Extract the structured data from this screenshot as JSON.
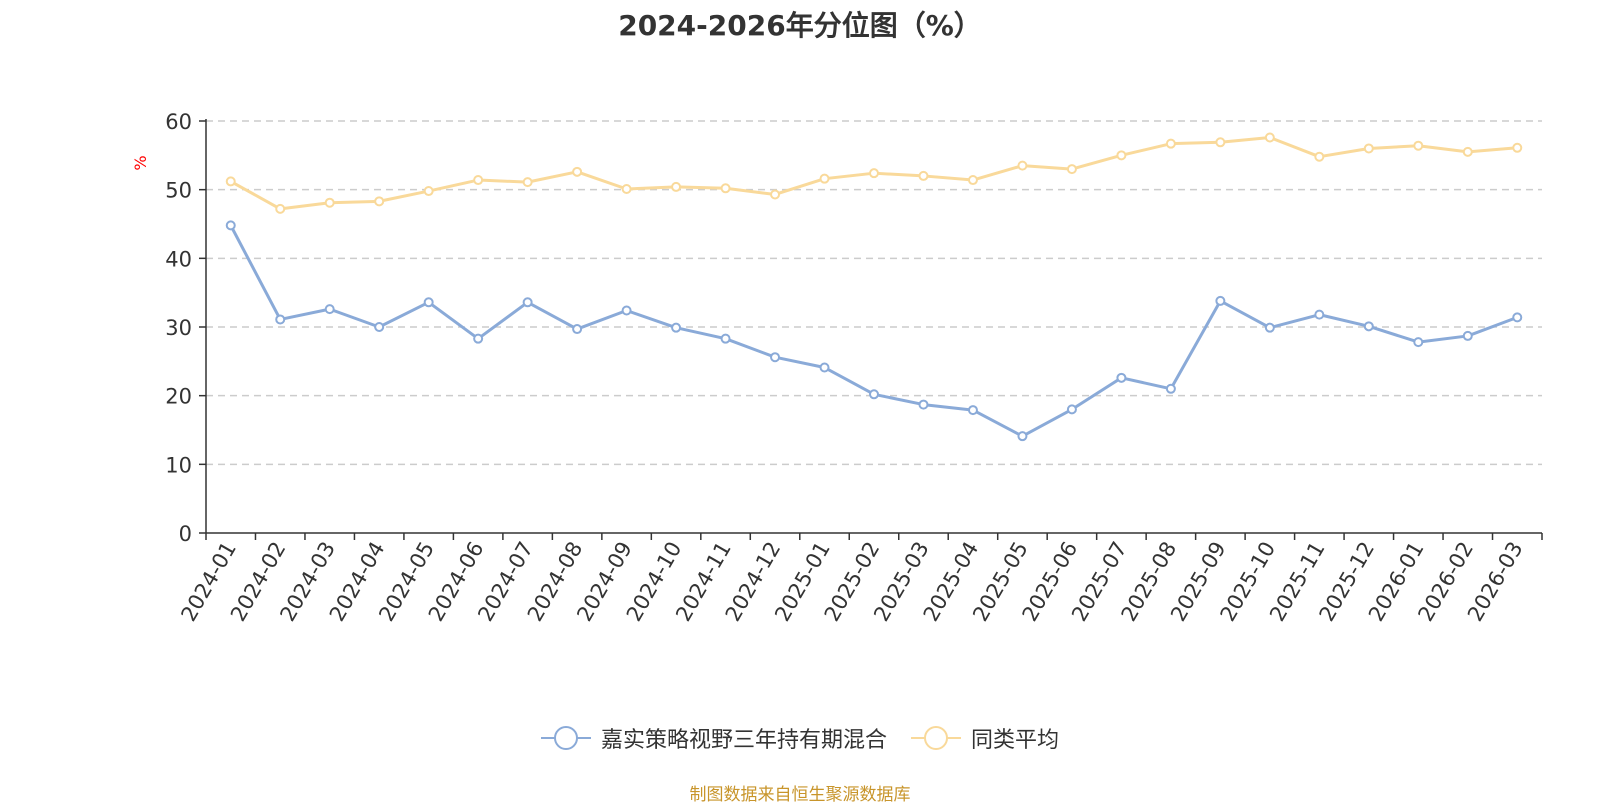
{
  "chart_data": {
    "type": "line",
    "title": "2024-2026年分位图（%）",
    "ylabel": "%",
    "xlabel": "",
    "ylim": [
      0,
      60
    ],
    "yticks": [
      0,
      10,
      20,
      30,
      40,
      50,
      60
    ],
    "grid": true,
    "legend_position": "bottom-center",
    "categories": [
      "2024-01",
      "2024-02",
      "2024-03",
      "2024-04",
      "2024-05",
      "2024-06",
      "2024-07",
      "2024-08",
      "2024-09",
      "2024-10",
      "2024-11",
      "2024-12",
      "2025-01",
      "2025-02",
      "2025-03",
      "2025-04",
      "2025-05",
      "2025-06",
      "2025-07",
      "2025-08",
      "2025-09",
      "2025-10",
      "2025-11",
      "2025-12",
      "2026-01",
      "2026-02",
      "2026-03"
    ],
    "series": [
      {
        "name": "嘉实策略视野三年持有期混合",
        "color": "#8aaad8",
        "values": [
          44.8,
          31.1,
          32.6,
          30.0,
          33.6,
          28.3,
          33.6,
          29.7,
          32.4,
          29.9,
          28.3,
          25.6,
          24.1,
          20.2,
          18.7,
          17.9,
          14.1,
          18.0,
          22.6,
          21.0,
          33.8,
          29.9,
          31.8,
          30.1,
          27.8,
          28.7,
          31.4
        ]
      },
      {
        "name": "同类平均",
        "color": "#f9d99a",
        "values": [
          51.2,
          47.2,
          48.1,
          48.3,
          49.8,
          51.4,
          51.1,
          52.6,
          50.1,
          50.4,
          50.2,
          49.3,
          51.6,
          52.4,
          52.0,
          51.4,
          53.5,
          53.0,
          55.0,
          56.7,
          56.9,
          57.6,
          54.8,
          56.0,
          56.4,
          55.5,
          56.1
        ]
      }
    ]
  },
  "source_note": "制图数据来自恒生聚源数据库"
}
